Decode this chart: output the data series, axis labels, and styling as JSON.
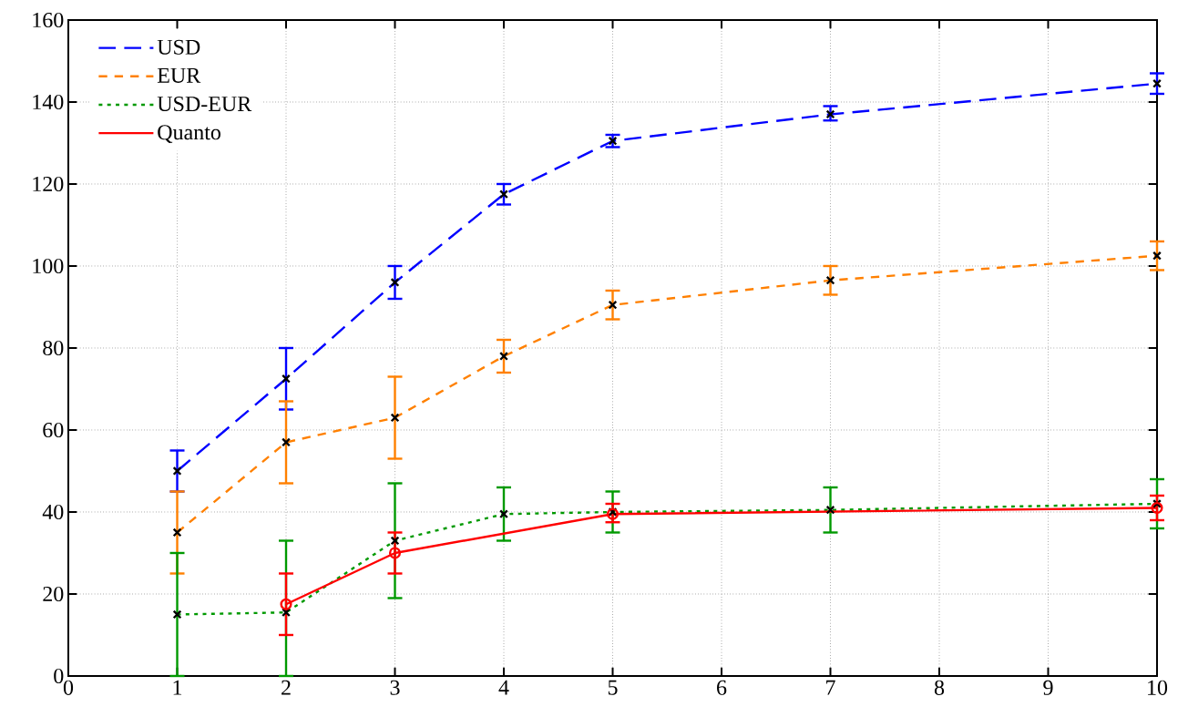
{
  "chart_data": {
    "type": "line",
    "xlim": [
      0,
      10
    ],
    "ylim": [
      0,
      160
    ],
    "xticks": [
      0,
      1,
      2,
      3,
      4,
      5,
      6,
      7,
      8,
      9,
      10
    ],
    "yticks": [
      0,
      20,
      40,
      60,
      80,
      100,
      120,
      140,
      160
    ],
    "grid": true,
    "legend": "top left",
    "series": [
      {
        "name": "USD",
        "color": "#0000ff",
        "line_style": "dashed",
        "marker": "cross",
        "x": [
          1,
          2,
          3,
          4,
          5,
          7,
          10
        ],
        "values": [
          50,
          72.5,
          96,
          117.5,
          130.5,
          137,
          144.5
        ],
        "errors": [
          [
            45,
            55
          ],
          [
            65,
            80
          ],
          [
            92,
            100
          ],
          [
            115,
            120
          ],
          [
            129,
            132
          ],
          [
            135.5,
            139
          ],
          [
            142,
            147
          ]
        ]
      },
      {
        "name": "EUR",
        "color": "#ff8000",
        "line_style": "dashed",
        "marker": "cross",
        "x": [
          1,
          2,
          3,
          4,
          5,
          7,
          10
        ],
        "values": [
          35,
          57,
          63,
          78,
          90.5,
          96.5,
          102.5
        ],
        "errors": [
          [
            25,
            45
          ],
          [
            47,
            67
          ],
          [
            53,
            73
          ],
          [
            74,
            82
          ],
          [
            87,
            94
          ],
          [
            93,
            100
          ],
          [
            99,
            106
          ]
        ]
      },
      {
        "name": "USD-EUR",
        "color": "#009900",
        "line_style": "dotted",
        "marker": "cross",
        "x": [
          1,
          2,
          3,
          4,
          5,
          7,
          10
        ],
        "values": [
          15,
          15.5,
          33,
          39.5,
          40,
          40.5,
          42
        ],
        "errors": [
          [
            0,
            30
          ],
          [
            0,
            33
          ],
          [
            19,
            47
          ],
          [
            33,
            46
          ],
          [
            35,
            45
          ],
          [
            35,
            46
          ],
          [
            36,
            48
          ]
        ]
      },
      {
        "name": "Quanto",
        "color": "#ff0000",
        "line_style": "solid",
        "marker": "circle",
        "x": [
          2,
          3,
          5,
          10
        ],
        "values": [
          17.5,
          30,
          39.5,
          41
        ],
        "errors": [
          [
            10,
            25
          ],
          [
            25,
            35
          ],
          [
            37.5,
            42
          ],
          [
            38,
            44
          ]
        ]
      }
    ]
  }
}
